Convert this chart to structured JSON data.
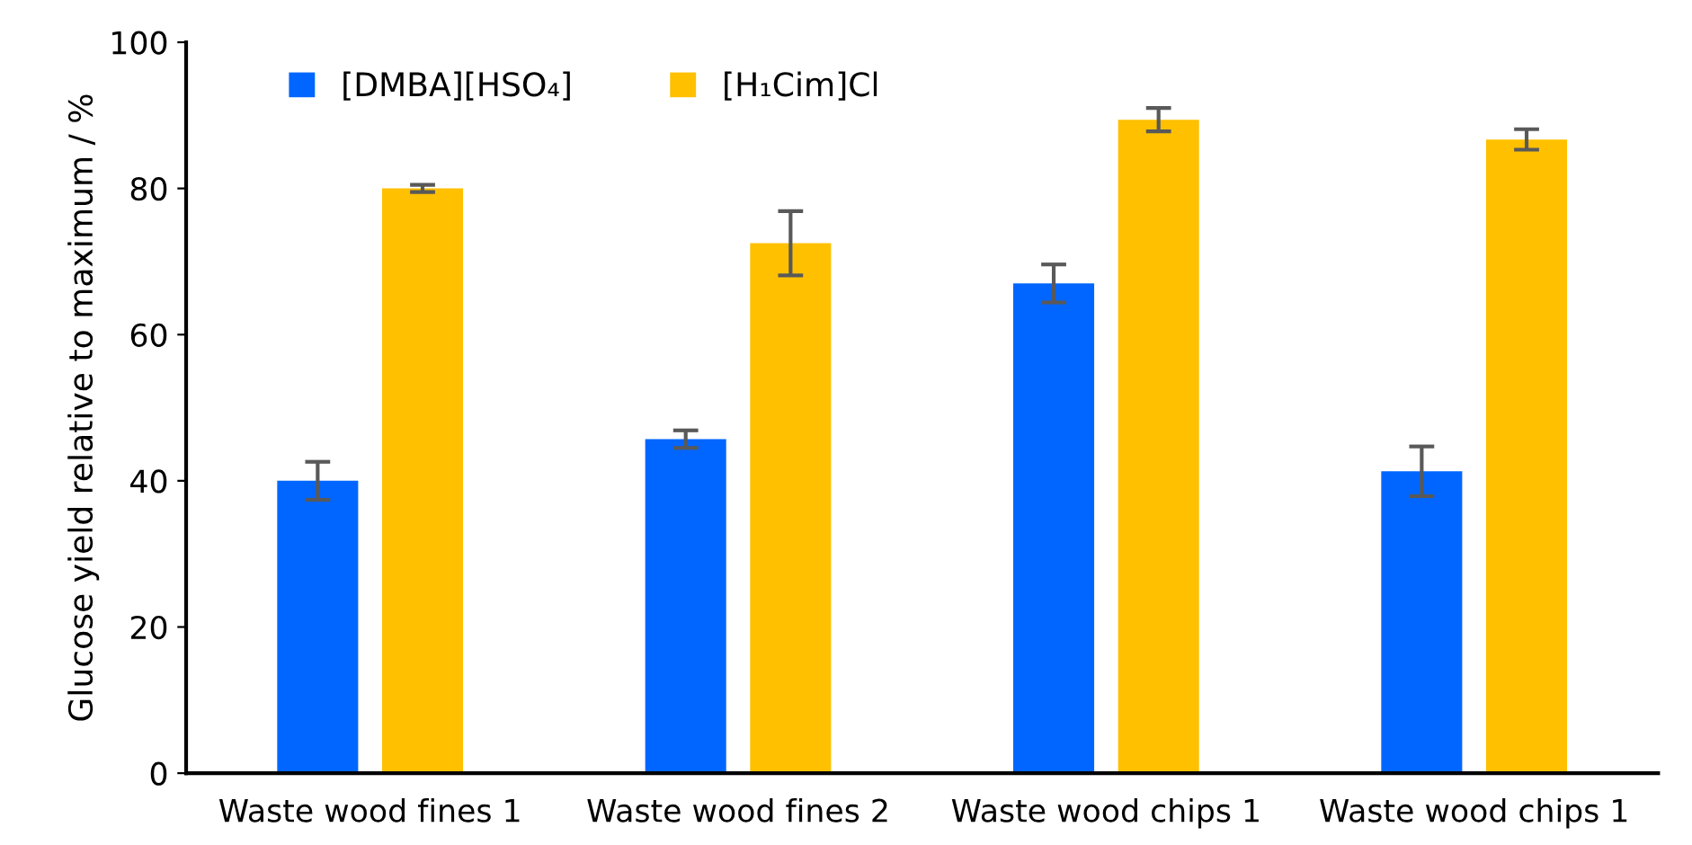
{
  "chart_data": {
    "type": "bar",
    "ylabel": "Glucose yield relative to maximum / %",
    "categories": [
      "Waste wood fines 1",
      "Waste wood fines 2",
      "Waste wood chips 1",
      "Waste wood chips 1"
    ],
    "series": [
      {
        "name": "[DMBA][HSO₄]",
        "color": "#0066ff",
        "values": [
          40,
          45.7,
          67,
          41.3
        ],
        "errors": [
          2.6,
          1.2,
          2.6,
          3.4
        ]
      },
      {
        "name": "[H₁Cim]Cl",
        "color": "#ffc000",
        "values": [
          80,
          72.5,
          89.4,
          86.7
        ],
        "errors": [
          0.5,
          4.4,
          1.6,
          1.4
        ]
      }
    ],
    "ylim": [
      0,
      100
    ],
    "yticks": [
      0,
      20,
      40,
      60,
      80,
      100
    ],
    "grid": false,
    "legend": "top left"
  }
}
